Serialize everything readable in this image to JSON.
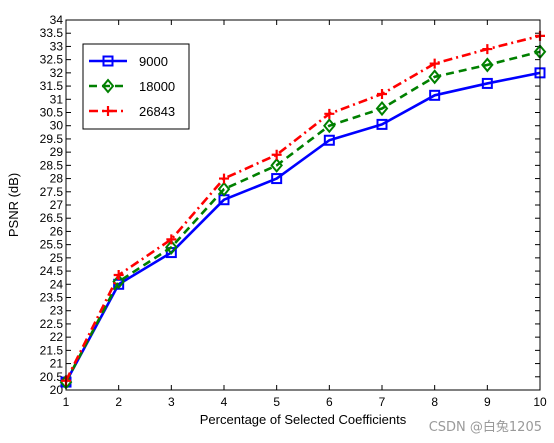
{
  "chart_data": {
    "type": "line",
    "xlabel": "Percentage of Selected Coefficients",
    "ylabel": "PSNR (dB)",
    "xlim": [
      1,
      10
    ],
    "ylim": [
      20,
      34
    ],
    "xticks": [
      "1",
      "2",
      "3",
      "4",
      "5",
      "6",
      "7",
      "8",
      "9",
      "10"
    ],
    "yticks": [
      "20",
      "20.5",
      "21",
      "21.5",
      "22",
      "22.5",
      "23",
      "23.5",
      "24",
      "24.5",
      "25",
      "25.5",
      "26",
      "26.5",
      "27",
      "27.5",
      "28",
      "28.5",
      "29",
      "29.5",
      "30",
      "30.5",
      "31",
      "31.5",
      "32",
      "32.5",
      "33",
      "33.5",
      "34"
    ],
    "x": [
      1,
      2,
      3,
      4,
      5,
      6,
      7,
      8,
      9,
      10
    ],
    "grid": false,
    "legend_position": "top-left",
    "series": [
      {
        "name": "9000",
        "values": [
          20.3,
          24.0,
          25.2,
          27.2,
          28.0,
          29.45,
          30.05,
          31.15,
          31.6,
          32.0
        ],
        "color": "#0000ff",
        "dash": "solid",
        "marker": "square"
      },
      {
        "name": "18000",
        "values": [
          20.3,
          24.1,
          25.4,
          27.6,
          28.5,
          30.0,
          30.65,
          31.85,
          32.3,
          32.8
        ],
        "color": "#008000",
        "dash": "dashed",
        "marker": "diamond"
      },
      {
        "name": "26843",
        "values": [
          20.35,
          24.35,
          25.7,
          28.0,
          28.9,
          30.45,
          31.2,
          32.35,
          32.9,
          33.4
        ],
        "color": "#ff0000",
        "dash": "dashdot",
        "marker": "plus"
      }
    ]
  },
  "watermark": "CSDN @白兔1205"
}
